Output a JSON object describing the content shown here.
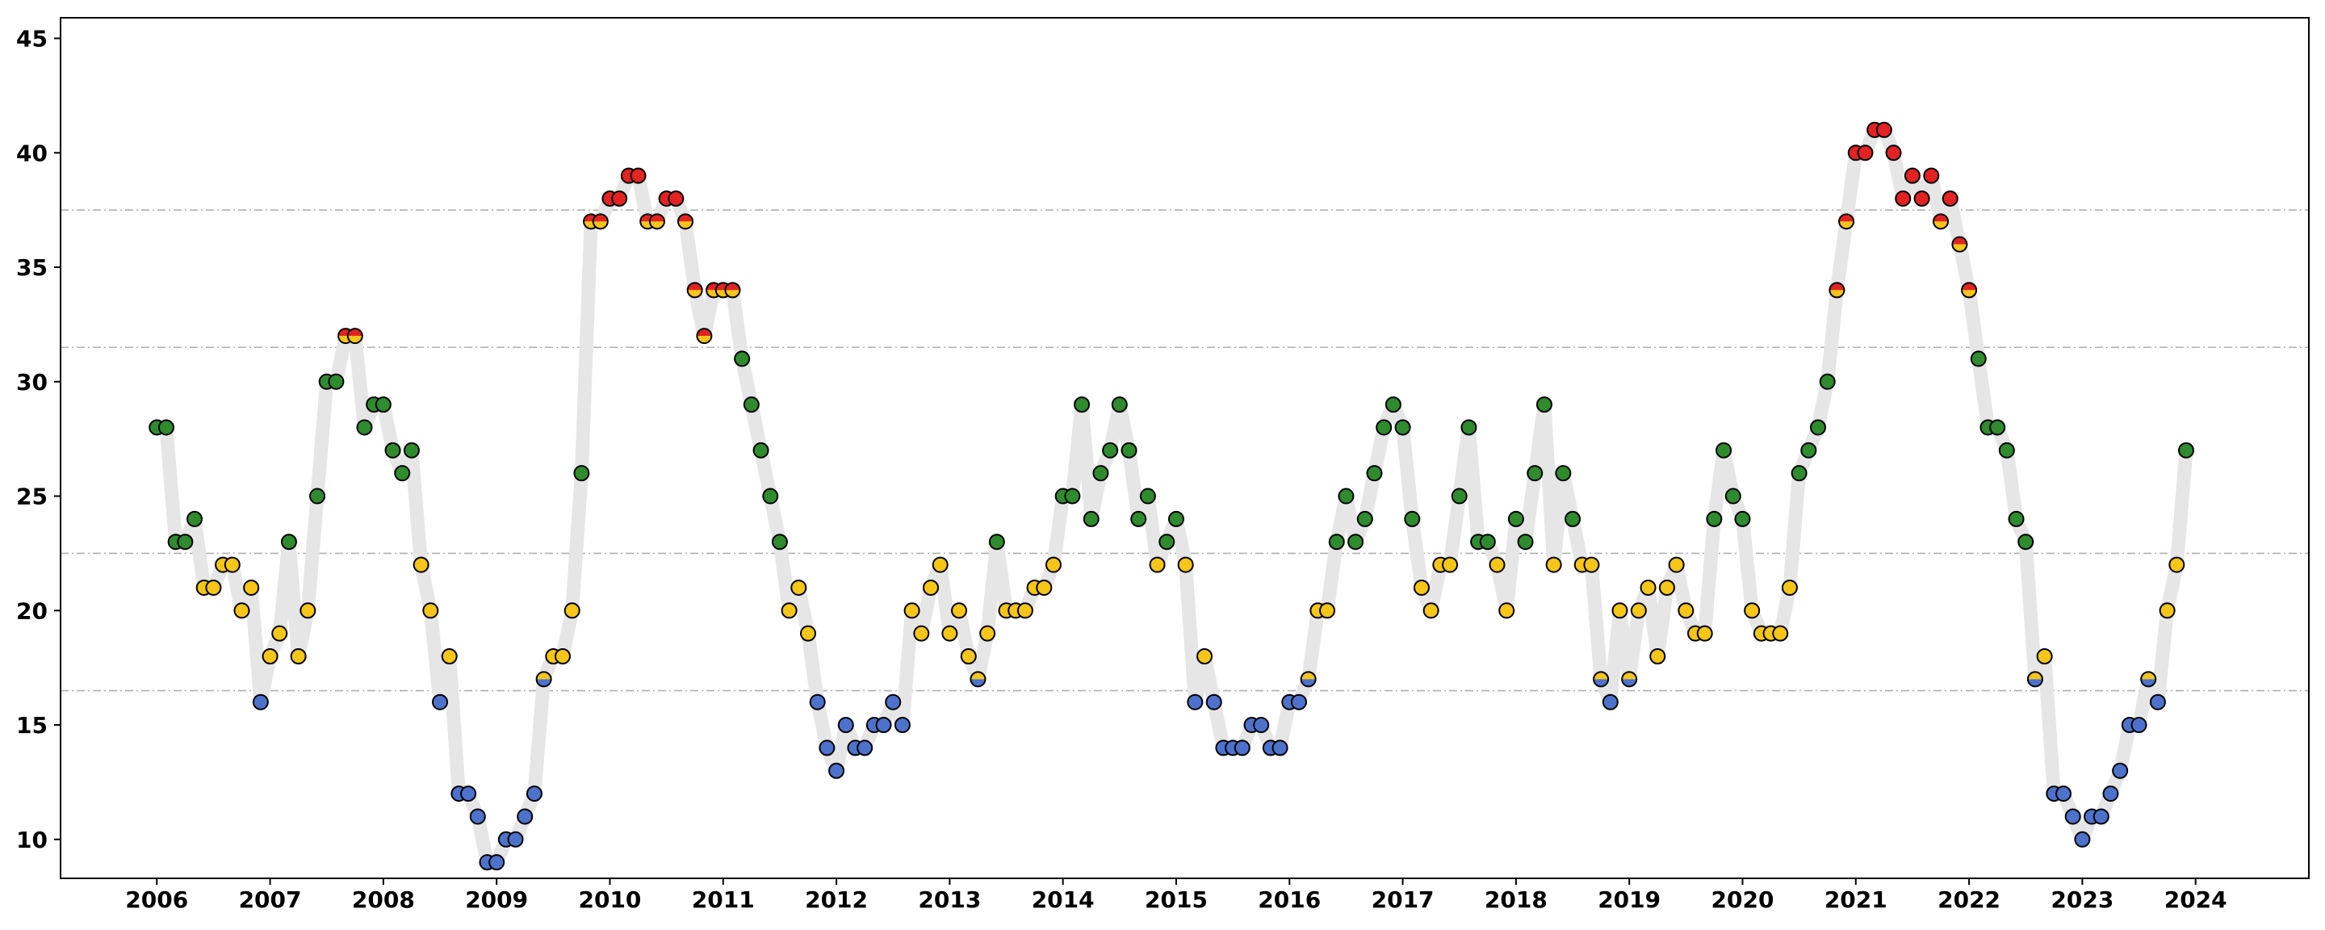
{
  "chart_data": {
    "type": "scatter",
    "title": "",
    "xlabel": "",
    "ylabel": "",
    "xlim": [
      2005.15,
      2025.0
    ],
    "ylim": [
      8.3,
      45.9
    ],
    "x_ticks": [
      "2006",
      "2007",
      "2008",
      "2009",
      "2010",
      "2011",
      "2012",
      "2013",
      "2014",
      "2015",
      "2016",
      "2017",
      "2018",
      "2019",
      "2020",
      "2021",
      "2022",
      "2023",
      "2024"
    ],
    "y_ticks": [
      10,
      15,
      20,
      25,
      30,
      35,
      40,
      45
    ],
    "grid": "horizontal dashed lines at thresholds only",
    "thresholds": [
      16.5,
      22.5,
      31.5,
      37.5
    ],
    "line_color": "#e6e6e6",
    "colors": {
      "blue": "#4d72cc",
      "green": "#2e8b2e",
      "yellow": "#f5c518",
      "red": "#e32222",
      "outline": "#000000",
      "threshold": "#b0b0b0"
    },
    "categories": {
      "blue": "value below 16.5",
      "blue/yellow": "16.5 to 18",
      "yellow": "18 to 22.5",
      "green": "22.5 to 31.5",
      "yellow/red": "31.5 to 37.5",
      "red": "above 37.5"
    },
    "series": [
      {
        "start": "2006-01",
        "values": [
          28,
          28,
          23,
          23,
          24,
          21,
          21,
          22,
          22,
          20,
          21,
          16,
          18,
          19,
          23,
          18,
          20,
          25,
          30,
          30,
          32,
          32,
          28,
          29,
          29,
          27,
          26,
          27,
          22,
          20,
          16,
          18,
          12,
          12,
          11,
          9,
          9,
          10,
          10,
          11,
          12,
          17,
          18,
          18,
          20,
          26,
          37,
          37,
          38,
          38,
          39,
          39,
          37,
          37,
          38,
          38,
          37,
          34,
          32,
          34,
          34,
          34,
          31,
          29,
          27,
          25,
          23,
          20,
          21,
          19,
          16,
          14,
          13,
          15,
          14,
          14,
          15,
          15,
          16,
          15,
          20,
          19,
          21,
          22,
          19,
          20,
          18,
          17,
          19,
          23,
          20,
          20,
          20,
          21,
          21,
          22,
          25,
          25,
          29,
          24,
          26,
          27,
          29,
          27,
          24,
          25,
          22,
          23,
          24,
          22,
          16,
          18,
          16,
          14,
          14,
          14,
          15,
          15,
          14,
          14,
          16,
          16,
          17,
          20,
          20,
          23,
          25,
          23,
          24,
          26,
          28,
          29,
          28,
          24,
          21,
          20,
          22,
          22,
          25,
          28,
          23,
          23,
          22,
          20,
          24,
          23,
          26,
          29,
          22,
          26,
          24,
          22,
          22,
          17,
          16,
          20,
          17,
          20,
          21,
          18,
          21,
          22,
          20,
          19,
          19,
          24,
          27,
          25,
          24,
          20,
          19,
          19,
          19,
          21,
          26,
          27,
          28,
          30,
          34,
          37,
          40,
          40,
          41,
          41,
          40,
          38,
          39,
          38,
          39,
          37,
          38,
          36,
          34,
          31,
          28,
          28,
          27,
          24,
          23,
          17,
          18,
          12,
          12,
          11,
          10,
          11,
          11,
          12,
          13,
          15,
          15,
          17,
          16,
          20,
          22,
          27
        ]
      }
    ]
  }
}
